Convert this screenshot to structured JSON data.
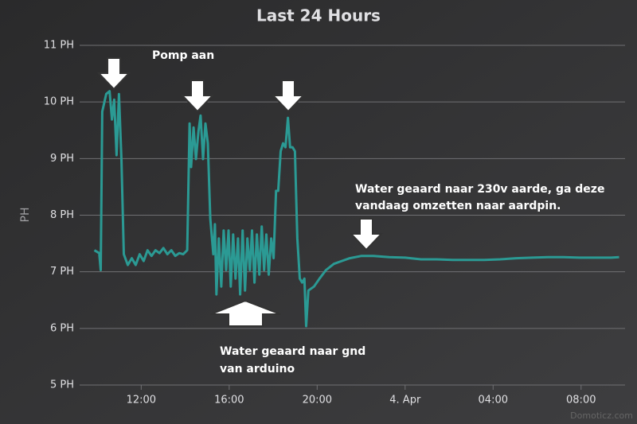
{
  "chart_data": {
    "type": "line",
    "title": "Last 24 Hours",
    "y_label": "PH",
    "color": "#2b9a94",
    "x": [
      9.87,
      10.09,
      10.16,
      10.23,
      10.41,
      10.56,
      10.67,
      10.77,
      10.88,
      10.99,
      11.1,
      11.21,
      11.39,
      11.57,
      11.75,
      11.93,
      12.11,
      12.29,
      12.47,
      12.65,
      12.83,
      13.01,
      13.19,
      13.37,
      13.55,
      13.73,
      13.91,
      14.09,
      14.2,
      14.27,
      14.38,
      14.49,
      14.6,
      14.7,
      14.81,
      14.92,
      15.03,
      15.14,
      15.28,
      15.35,
      15.42,
      15.53,
      15.64,
      15.75,
      15.86,
      15.97,
      16.07,
      16.18,
      16.29,
      16.4,
      16.5,
      16.61,
      16.72,
      16.83,
      16.94,
      17.04,
      17.15,
      17.26,
      17.37,
      17.48,
      17.59,
      17.69,
      17.8,
      17.91,
      18.02,
      18.13,
      18.23,
      18.34,
      18.45,
      18.56,
      18.67,
      18.77,
      18.88,
      18.99,
      19.1,
      19.21,
      19.32,
      19.42,
      19.5,
      19.6,
      19.86,
      20.11,
      20.4,
      20.76,
      21.12,
      21.48,
      22.02,
      22.56,
      23.28,
      24.0,
      24.72,
      25.44,
      26.16,
      26.88,
      27.6,
      28.32,
      29.05,
      29.77,
      30.49,
      31.21,
      31.93,
      32.65,
      33.37,
      33.73
    ],
    "values": [
      7.38,
      7.33,
      7.03,
      9.83,
      10.14,
      10.19,
      9.69,
      10.04,
      9.06,
      10.14,
      8.99,
      7.31,
      7.12,
      7.24,
      7.12,
      7.31,
      7.19,
      7.38,
      7.28,
      7.38,
      7.33,
      7.42,
      7.31,
      7.38,
      7.28,
      7.33,
      7.31,
      7.38,
      9.62,
      8.85,
      9.55,
      8.99,
      9.48,
      9.76,
      8.99,
      9.62,
      9.27,
      7.94,
      7.31,
      7.84,
      6.6,
      7.59,
      6.74,
      7.73,
      7.03,
      7.73,
      6.74,
      7.66,
      6.88,
      7.59,
      6.6,
      7.73,
      6.67,
      7.59,
      7.03,
      7.73,
      6.81,
      7.66,
      6.95,
      7.8,
      7.03,
      7.66,
      6.95,
      7.59,
      7.24,
      8.43,
      8.43,
      9.13,
      9.27,
      9.2,
      9.72,
      9.2,
      9.2,
      9.13,
      7.59,
      6.88,
      6.81,
      6.88,
      6.04,
      6.67,
      6.74,
      6.88,
      7.03,
      7.14,
      7.19,
      7.24,
      7.28,
      7.28,
      7.26,
      7.25,
      7.22,
      7.22,
      7.21,
      7.21,
      7.21,
      7.22,
      7.24,
      7.25,
      7.26,
      7.26,
      7.25,
      7.25,
      7.25,
      7.26
    ],
    "xlim": [
      9.2,
      34
    ],
    "xticks": [
      {
        "value": 12,
        "label": "12:00"
      },
      {
        "value": 16,
        "label": "16:00"
      },
      {
        "value": 20,
        "label": "20:00"
      },
      {
        "value": 24,
        "label": "4. Apr"
      },
      {
        "value": 28,
        "label": "04:00"
      },
      {
        "value": 32,
        "label": "08:00"
      }
    ],
    "ylim": [
      5,
      11
    ],
    "yticks": [
      {
        "value": 5,
        "label": "5 PH"
      },
      {
        "value": 6,
        "label": "6 PH"
      },
      {
        "value": 7,
        "label": "7 PH"
      },
      {
        "value": 8,
        "label": "8 PH"
      },
      {
        "value": 9,
        "label": "9 PH"
      },
      {
        "value": 10,
        "label": "10 PH"
      },
      {
        "value": 11,
        "label": "11 PH"
      }
    ],
    "grid": true,
    "annotations": [
      [
        "Pomp aan"
      ],
      [
        "Water geaard naar 230v aarde, ga deze",
        "vandaag omzetten naar aardpin."
      ],
      [
        "Water geaard naar gnd",
        "van arduino"
      ]
    ],
    "credits": "Domoticz.com"
  }
}
